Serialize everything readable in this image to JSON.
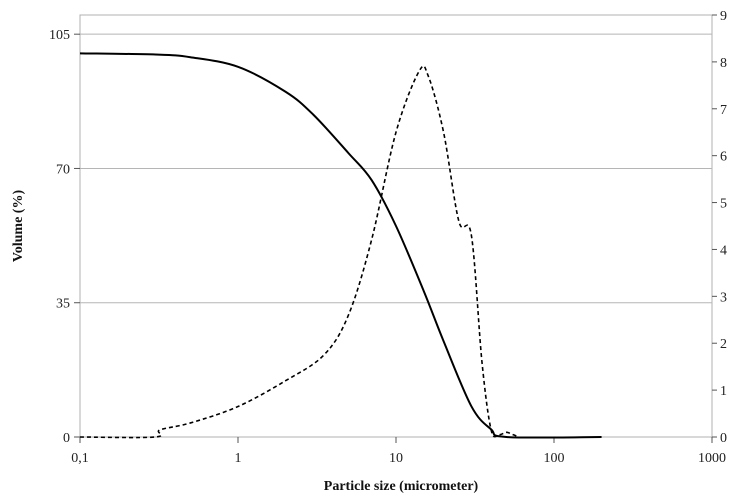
{
  "chart_data": {
    "type": "line",
    "xlabel": "Particle size (micrometer)",
    "ylabel": "Volume (%)",
    "x_scale": "log",
    "xlim": [
      0.1,
      1000
    ],
    "ylim": [
      0,
      110
    ],
    "y2lim": [
      0,
      9
    ],
    "x_ticks": [
      "0,1",
      "1",
      "10",
      "100",
      "1000"
    ],
    "y_ticks": [
      "0",
      "35",
      "70",
      "105"
    ],
    "y2_ticks": [
      "0",
      "1",
      "2",
      "3",
      "4",
      "5",
      "6",
      "7",
      "8",
      "9"
    ],
    "grid": "horizontal",
    "series": [
      {
        "style": "solid",
        "axis": "left",
        "x": [
          0.1,
          0.3,
          0.5,
          1.0,
          2.0,
          3.0,
          5.0,
          7.0,
          10.0,
          15.0,
          20.0,
          30.0,
          40.0,
          50.0,
          200.0
        ],
        "y": [
          100,
          99.7,
          99,
          96.5,
          90,
          84,
          74,
          67,
          55,
          38,
          25,
          8,
          2,
          0,
          0
        ]
      },
      {
        "style": "dashed",
        "axis": "right",
        "x": [
          0.1,
          0.3,
          0.32,
          0.5,
          1.0,
          2.0,
          3.5,
          5.0,
          7.0,
          10.0,
          14.0,
          16.0,
          20.0,
          25.0,
          30.0,
          35.0,
          40.0,
          45.0,
          50.0,
          55.0,
          60.0
        ],
        "y": [
          0,
          0,
          0.15,
          0.3,
          0.65,
          1.2,
          1.75,
          2.6,
          4.2,
          6.5,
          7.8,
          7.7,
          6.5,
          4.6,
          4.3,
          1.6,
          0.15,
          0.05,
          0.1,
          0.05,
          0
        ]
      }
    ]
  }
}
